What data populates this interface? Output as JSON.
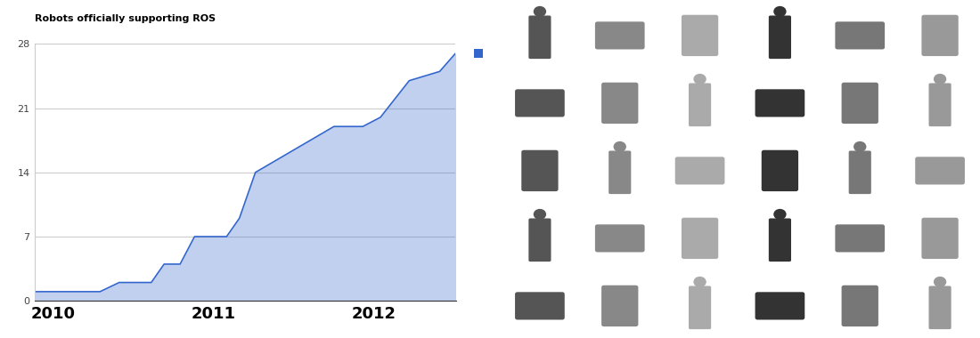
{
  "chart_data": {
    "type": "area",
    "title": "Robots officially supporting ROS",
    "x": [
      2009.88,
      2010.29,
      2010.41,
      2010.61,
      2010.69,
      2010.79,
      2010.88,
      2011.08,
      2011.16,
      2011.26,
      2011.75,
      2011.93,
      2012.04,
      2012.22,
      2012.41,
      2012.51
    ],
    "values": [
      1,
      1,
      2,
      2,
      4,
      4,
      7,
      7,
      9,
      14,
      19,
      19,
      20,
      24,
      25,
      27
    ],
    "color": "#3366cc",
    "xlim": [
      2009.88,
      2012.51
    ],
    "xticks": [
      2010,
      2011,
      2012
    ],
    "ylim": [
      0,
      28
    ],
    "yticks": [
      0,
      7,
      14,
      21,
      28
    ],
    "grid": true
  }
}
